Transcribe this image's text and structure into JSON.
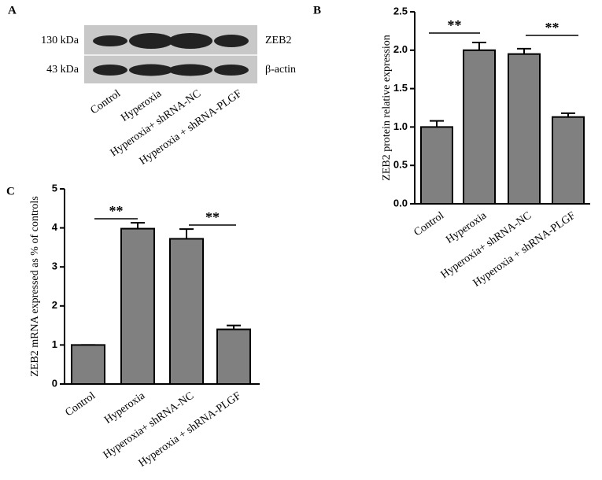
{
  "blot": {
    "panel": "A",
    "bands": [
      {
        "size": "130 kDa",
        "name": "ZEB2"
      },
      {
        "size": "43 kDa",
        "name": "β-actin"
      }
    ],
    "lanes": [
      "Control",
      "Hyperoxia",
      "Hyperoxia+ shRNA-NC",
      "Hyperoxia + shRNA-PLGF"
    ]
  },
  "chart_data": [
    {
      "type": "bar",
      "panel": "B",
      "ylabel": "ZEB2 protein relative expression",
      "categories": [
        "Control",
        "Hyperoxia",
        "Hyperoxia+ shRNA-NC",
        "Hyperoxia + shRNA-PLGF"
      ],
      "values": [
        1.0,
        2.0,
        1.95,
        1.13
      ],
      "errors": [
        0.08,
        0.1,
        0.07,
        0.05
      ],
      "color": "#808080",
      "ylim": [
        0,
        2.5
      ],
      "yticks": [
        {
          "value": 0,
          "label": "0.0"
        },
        0.5,
        {
          "value": 1,
          "label": "1.0"
        },
        1.5,
        {
          "value": 2,
          "label": "2.0"
        },
        2.5
      ],
      "annotations": [
        "**",
        "**"
      ]
    },
    {
      "type": "bar",
      "panel": "C",
      "ylabel": "ZEB2  mRNA expressed as % of controls",
      "categories": [
        "Control",
        "Hyperoxia",
        "Hyperoxia+ shRNA-NC",
        "Hyperoxia + shRNA-PLGF"
      ],
      "values": [
        1.0,
        3.98,
        3.72,
        1.4
      ],
      "errors": [
        0,
        0.15,
        0.25,
        0.1
      ],
      "color": "#808080",
      "ylim": [
        0,
        5
      ],
      "yticks": [
        0,
        1,
        2,
        3,
        4,
        5
      ],
      "annotations": [
        "**",
        "**"
      ]
    }
  ]
}
